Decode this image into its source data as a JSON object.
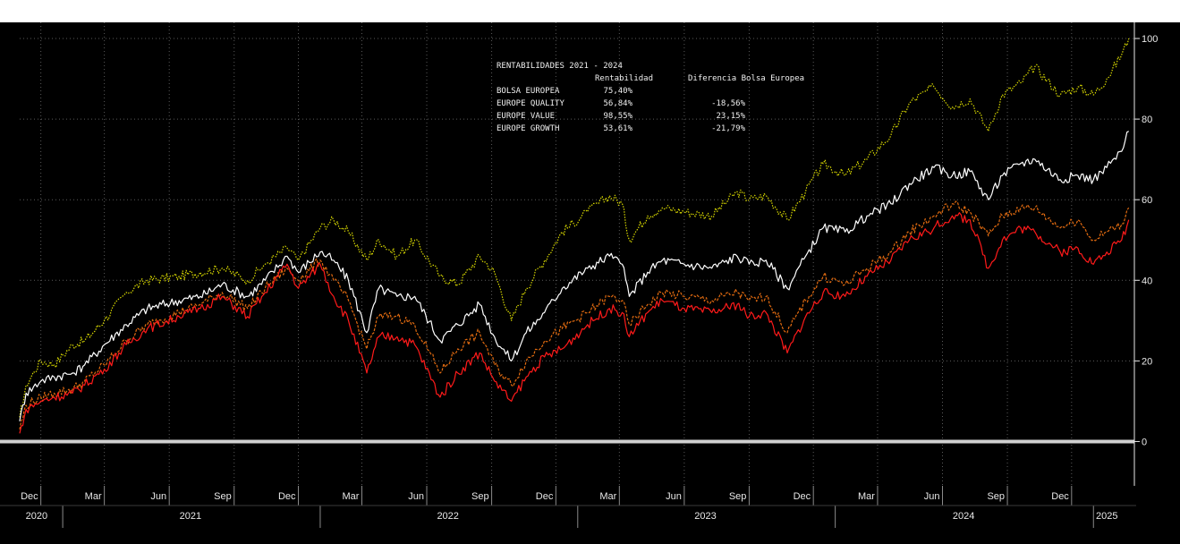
{
  "chart_data": {
    "type": "line",
    "title": "",
    "xlabel": "",
    "ylabel": "",
    "ylim": [
      -11,
      104
    ],
    "xlim": [
      "2020-11-01",
      "2025-02-28"
    ],
    "grid": true,
    "legend": "none",
    "y_axis_side": "right",
    "y_ticks": [
      "100",
      "80",
      "60",
      "40",
      "20",
      "0"
    ],
    "month_ticks": [
      {
        "date": "2020-12-01",
        "label": "Dec"
      },
      {
        "date": "2021-03-01",
        "label": "Mar"
      },
      {
        "date": "2021-06-01",
        "label": "Jun"
      },
      {
        "date": "2021-09-01",
        "label": "Sep"
      },
      {
        "date": "2021-12-01",
        "label": "Dec"
      },
      {
        "date": "2022-03-01",
        "label": "Mar"
      },
      {
        "date": "2022-06-01",
        "label": "Jun"
      },
      {
        "date": "2022-09-01",
        "label": "Sep"
      },
      {
        "date": "2022-12-01",
        "label": "Dec"
      },
      {
        "date": "2023-03-01",
        "label": "Mar"
      },
      {
        "date": "2023-06-01",
        "label": "Jun"
      },
      {
        "date": "2023-09-01",
        "label": "Sep"
      },
      {
        "date": "2023-12-01",
        "label": "Dec"
      },
      {
        "date": "2024-03-01",
        "label": "Mar"
      },
      {
        "date": "2024-06-01",
        "label": "Jun"
      },
      {
        "date": "2024-09-01",
        "label": "Sep"
      },
      {
        "date": "2024-12-01",
        "label": "Dec"
      }
    ],
    "year_labels": [
      {
        "date": "2020-11-25",
        "label": "2020"
      },
      {
        "date": "2021-07-01",
        "label": "2021"
      },
      {
        "date": "2022-07-01",
        "label": "2022"
      },
      {
        "date": "2023-07-01",
        "label": "2023"
      },
      {
        "date": "2024-07-01",
        "label": "2024"
      },
      {
        "date": "2025-01-20",
        "label": "2025"
      }
    ],
    "year_separators": [
      "2021-01-01",
      "2022-01-01",
      "2023-01-01",
      "2024-01-01",
      "2025-01-01"
    ],
    "zero_line": {
      "y": 0,
      "color": "#d0d0d0"
    },
    "colors": {
      "background": "#000000",
      "grid": "#5a5a5a",
      "axis_text": "#e8e8e8"
    },
    "series": [
      {
        "color": "#d8d800",
        "style": "dotted",
        "points": [
          [
            "2020-11-01",
            6
          ],
          [
            "2020-11-10",
            14
          ],
          [
            "2020-12-01",
            20
          ],
          [
            "2020-12-20",
            19
          ],
          [
            "2021-01-15",
            24
          ],
          [
            "2021-02-01",
            25
          ],
          [
            "2021-03-01",
            30
          ],
          [
            "2021-04-01",
            37
          ],
          [
            "2021-05-01",
            40
          ],
          [
            "2021-06-15",
            41
          ],
          [
            "2021-07-15",
            42
          ],
          [
            "2021-08-15",
            43
          ],
          [
            "2021-09-20",
            40
          ],
          [
            "2021-10-15",
            44
          ],
          [
            "2021-11-15",
            48
          ],
          [
            "2021-12-01",
            45
          ],
          [
            "2022-01-01",
            53
          ],
          [
            "2022-01-20",
            55
          ],
          [
            "2022-02-10",
            52
          ],
          [
            "2022-03-08",
            45
          ],
          [
            "2022-03-25",
            50
          ],
          [
            "2022-04-20",
            46
          ],
          [
            "2022-05-15",
            50
          ],
          [
            "2022-06-20",
            41
          ],
          [
            "2022-07-15",
            39
          ],
          [
            "2022-08-15",
            46
          ],
          [
            "2022-09-05",
            42
          ],
          [
            "2022-09-29",
            30
          ],
          [
            "2022-10-20",
            38
          ],
          [
            "2022-11-15",
            45
          ],
          [
            "2022-12-10",
            52
          ],
          [
            "2023-01-15",
            57
          ],
          [
            "2023-02-15",
            61
          ],
          [
            "2023-03-05",
            59
          ],
          [
            "2023-03-15",
            50
          ],
          [
            "2023-04-10",
            56
          ],
          [
            "2023-05-01",
            58
          ],
          [
            "2023-06-01",
            57
          ],
          [
            "2023-07-10",
            56
          ],
          [
            "2023-08-15",
            62
          ],
          [
            "2023-09-01",
            60
          ],
          [
            "2023-09-25",
            61
          ],
          [
            "2023-10-25",
            55
          ],
          [
            "2023-11-20",
            62
          ],
          [
            "2023-12-15",
            69
          ],
          [
            "2024-01-15",
            66
          ],
          [
            "2024-02-15",
            70
          ],
          [
            "2024-03-20",
            76
          ],
          [
            "2024-04-15",
            84
          ],
          [
            "2024-05-20",
            88
          ],
          [
            "2024-06-15",
            83
          ],
          [
            "2024-07-10",
            85
          ],
          [
            "2024-08-05",
            77
          ],
          [
            "2024-08-25",
            86
          ],
          [
            "2024-09-20",
            89
          ],
          [
            "2024-10-10",
            93
          ],
          [
            "2024-11-15",
            86
          ],
          [
            "2024-12-10",
            88
          ],
          [
            "2025-01-01",
            86
          ],
          [
            "2025-01-20",
            90
          ],
          [
            "2025-02-10",
            96
          ],
          [
            "2025-02-20",
            100
          ]
        ]
      },
      {
        "color": "#ffffff",
        "style": "solid",
        "points": [
          [
            "2020-11-01",
            5
          ],
          [
            "2020-11-10",
            12
          ],
          [
            "2020-12-01",
            15
          ],
          [
            "2020-12-20",
            16
          ],
          [
            "2021-01-15",
            17
          ],
          [
            "2021-02-01",
            19
          ],
          [
            "2021-03-01",
            24
          ],
          [
            "2021-04-01",
            29
          ],
          [
            "2021-05-01",
            33
          ],
          [
            "2021-06-15",
            35
          ],
          [
            "2021-07-15",
            36
          ],
          [
            "2021-08-15",
            39
          ],
          [
            "2021-09-20",
            36
          ],
          [
            "2021-10-15",
            40
          ],
          [
            "2021-11-15",
            46
          ],
          [
            "2021-12-01",
            42
          ],
          [
            "2022-01-01",
            47
          ],
          [
            "2022-01-20",
            45
          ],
          [
            "2022-02-10",
            40
          ],
          [
            "2022-03-08",
            27
          ],
          [
            "2022-03-25",
            38
          ],
          [
            "2022-04-20",
            36
          ],
          [
            "2022-05-15",
            36
          ],
          [
            "2022-06-20",
            25
          ],
          [
            "2022-07-15",
            29
          ],
          [
            "2022-08-15",
            34
          ],
          [
            "2022-09-05",
            26
          ],
          [
            "2022-09-29",
            20
          ],
          [
            "2022-10-20",
            27
          ],
          [
            "2022-11-15",
            32
          ],
          [
            "2022-12-10",
            38
          ],
          [
            "2023-01-15",
            43
          ],
          [
            "2023-02-15",
            46
          ],
          [
            "2023-03-05",
            44
          ],
          [
            "2023-03-15",
            36
          ],
          [
            "2023-04-10",
            42
          ],
          [
            "2023-05-01",
            45
          ],
          [
            "2023-06-01",
            44
          ],
          [
            "2023-07-10",
            43
          ],
          [
            "2023-08-15",
            46
          ],
          [
            "2023-09-01",
            44
          ],
          [
            "2023-09-25",
            45
          ],
          [
            "2023-10-25",
            38
          ],
          [
            "2023-11-20",
            46
          ],
          [
            "2023-12-15",
            53
          ],
          [
            "2024-01-15",
            52
          ],
          [
            "2024-02-15",
            56
          ],
          [
            "2024-03-20",
            59
          ],
          [
            "2024-04-15",
            64
          ],
          [
            "2024-05-20",
            68
          ],
          [
            "2024-06-15",
            66
          ],
          [
            "2024-07-10",
            67
          ],
          [
            "2024-08-05",
            60
          ],
          [
            "2024-08-25",
            66
          ],
          [
            "2024-09-20",
            69
          ],
          [
            "2024-10-10",
            70
          ],
          [
            "2024-11-15",
            65
          ],
          [
            "2024-12-10",
            66
          ],
          [
            "2025-01-01",
            65
          ],
          [
            "2025-01-20",
            68
          ],
          [
            "2025-02-10",
            72
          ],
          [
            "2025-02-20",
            77
          ]
        ]
      },
      {
        "color": "#e06a10",
        "style": "dashed",
        "points": [
          [
            "2020-11-01",
            3
          ],
          [
            "2020-11-10",
            9
          ],
          [
            "2020-12-01",
            11
          ],
          [
            "2020-12-20",
            12
          ],
          [
            "2021-01-15",
            13
          ],
          [
            "2021-02-01",
            15
          ],
          [
            "2021-03-01",
            19
          ],
          [
            "2021-04-01",
            25
          ],
          [
            "2021-05-01",
            29
          ],
          [
            "2021-06-15",
            32
          ],
          [
            "2021-07-15",
            34
          ],
          [
            "2021-08-15",
            37
          ],
          [
            "2021-09-20",
            33
          ],
          [
            "2021-10-15",
            38
          ],
          [
            "2021-11-15",
            43
          ],
          [
            "2021-12-01",
            40
          ],
          [
            "2022-01-01",
            45
          ],
          [
            "2022-01-20",
            40
          ],
          [
            "2022-02-10",
            35
          ],
          [
            "2022-03-08",
            23
          ],
          [
            "2022-03-25",
            31
          ],
          [
            "2022-04-20",
            31
          ],
          [
            "2022-05-15",
            29
          ],
          [
            "2022-06-20",
            17
          ],
          [
            "2022-07-15",
            23
          ],
          [
            "2022-08-15",
            27
          ],
          [
            "2022-09-05",
            19
          ],
          [
            "2022-09-29",
            14
          ],
          [
            "2022-10-20",
            20
          ],
          [
            "2022-11-15",
            25
          ],
          [
            "2022-12-10",
            28
          ],
          [
            "2023-01-15",
            32
          ],
          [
            "2023-02-15",
            36
          ],
          [
            "2023-03-05",
            35
          ],
          [
            "2023-03-15",
            29
          ],
          [
            "2023-04-10",
            34
          ],
          [
            "2023-05-01",
            37
          ],
          [
            "2023-06-01",
            36
          ],
          [
            "2023-07-10",
            35
          ],
          [
            "2023-08-15",
            37
          ],
          [
            "2023-09-01",
            35
          ],
          [
            "2023-09-25",
            36
          ],
          [
            "2023-10-25",
            27
          ],
          [
            "2023-11-20",
            35
          ],
          [
            "2023-12-15",
            41
          ],
          [
            "2024-01-15",
            39
          ],
          [
            "2024-02-15",
            43
          ],
          [
            "2024-03-20",
            47
          ],
          [
            "2024-04-15",
            52
          ],
          [
            "2024-05-20",
            56
          ],
          [
            "2024-06-15",
            59
          ],
          [
            "2024-07-10",
            57
          ],
          [
            "2024-08-05",
            51
          ],
          [
            "2024-08-25",
            56
          ],
          [
            "2024-09-20",
            58
          ],
          [
            "2024-10-10",
            58
          ],
          [
            "2024-11-15",
            53
          ],
          [
            "2024-12-10",
            55
          ],
          [
            "2025-01-01",
            50
          ],
          [
            "2025-01-20",
            52
          ],
          [
            "2025-02-10",
            54
          ],
          [
            "2025-02-20",
            58
          ]
        ]
      },
      {
        "color": "#ff1a1a",
        "style": "solid",
        "points": [
          [
            "2020-11-01",
            2
          ],
          [
            "2020-11-10",
            8
          ],
          [
            "2020-12-01",
            10
          ],
          [
            "2020-12-20",
            11
          ],
          [
            "2021-01-15",
            12
          ],
          [
            "2021-02-01",
            14
          ],
          [
            "2021-03-01",
            18
          ],
          [
            "2021-04-01",
            24
          ],
          [
            "2021-05-01",
            28
          ],
          [
            "2021-06-15",
            31
          ],
          [
            "2021-07-15",
            33
          ],
          [
            "2021-08-15",
            36
          ],
          [
            "2021-09-20",
            31
          ],
          [
            "2021-10-15",
            37
          ],
          [
            "2021-11-15",
            44
          ],
          [
            "2021-12-01",
            38
          ],
          [
            "2022-01-01",
            44
          ],
          [
            "2022-01-20",
            36
          ],
          [
            "2022-02-10",
            30
          ],
          [
            "2022-03-08",
            17
          ],
          [
            "2022-03-25",
            26
          ],
          [
            "2022-04-20",
            26
          ],
          [
            "2022-05-15",
            24
          ],
          [
            "2022-06-20",
            11
          ],
          [
            "2022-07-15",
            17
          ],
          [
            "2022-08-15",
            22
          ],
          [
            "2022-09-05",
            15
          ],
          [
            "2022-09-29",
            10
          ],
          [
            "2022-10-20",
            16
          ],
          [
            "2022-11-15",
            21
          ],
          [
            "2022-12-10",
            23
          ],
          [
            "2023-01-15",
            29
          ],
          [
            "2023-02-15",
            33
          ],
          [
            "2023-03-05",
            32
          ],
          [
            "2023-03-15",
            26
          ],
          [
            "2023-04-10",
            32
          ],
          [
            "2023-05-01",
            35
          ],
          [
            "2023-06-01",
            33
          ],
          [
            "2023-07-10",
            32
          ],
          [
            "2023-08-15",
            34
          ],
          [
            "2023-09-01",
            31
          ],
          [
            "2023-09-25",
            32
          ],
          [
            "2023-10-25",
            22
          ],
          [
            "2023-11-20",
            31
          ],
          [
            "2023-12-15",
            37
          ],
          [
            "2024-01-15",
            36
          ],
          [
            "2024-02-15",
            41
          ],
          [
            "2024-03-20",
            45
          ],
          [
            "2024-04-15",
            50
          ],
          [
            "2024-05-20",
            53
          ],
          [
            "2024-06-15",
            56
          ],
          [
            "2024-07-10",
            55
          ],
          [
            "2024-08-05",
            43
          ],
          [
            "2024-08-25",
            50
          ],
          [
            "2024-09-20",
            53
          ],
          [
            "2024-10-10",
            52
          ],
          [
            "2024-11-15",
            47
          ],
          [
            "2024-12-10",
            48
          ],
          [
            "2025-01-01",
            44
          ],
          [
            "2025-01-20",
            47
          ],
          [
            "2025-02-10",
            50
          ],
          [
            "2025-02-20",
            55
          ]
        ]
      }
    ]
  },
  "overlay_table": {
    "title": "RENTABILIDADES 2021 - 2024",
    "col_return": "Rentabilidad",
    "col_diff": "Diferencia Bolsa Europea",
    "rows": [
      {
        "name": "BOLSA EUROPEA",
        "ret": "75,40%",
        "diff": ""
      },
      {
        "name": "EUROPE QUALITY",
        "ret": "56,84%",
        "diff": "-18,56%"
      },
      {
        "name": "EUROPE VALUE",
        "ret": "98,55%",
        "diff": "23,15%"
      },
      {
        "name": "EUROPE GROWTH",
        "ret": "53,61%",
        "diff": "-21,79%"
      }
    ]
  }
}
